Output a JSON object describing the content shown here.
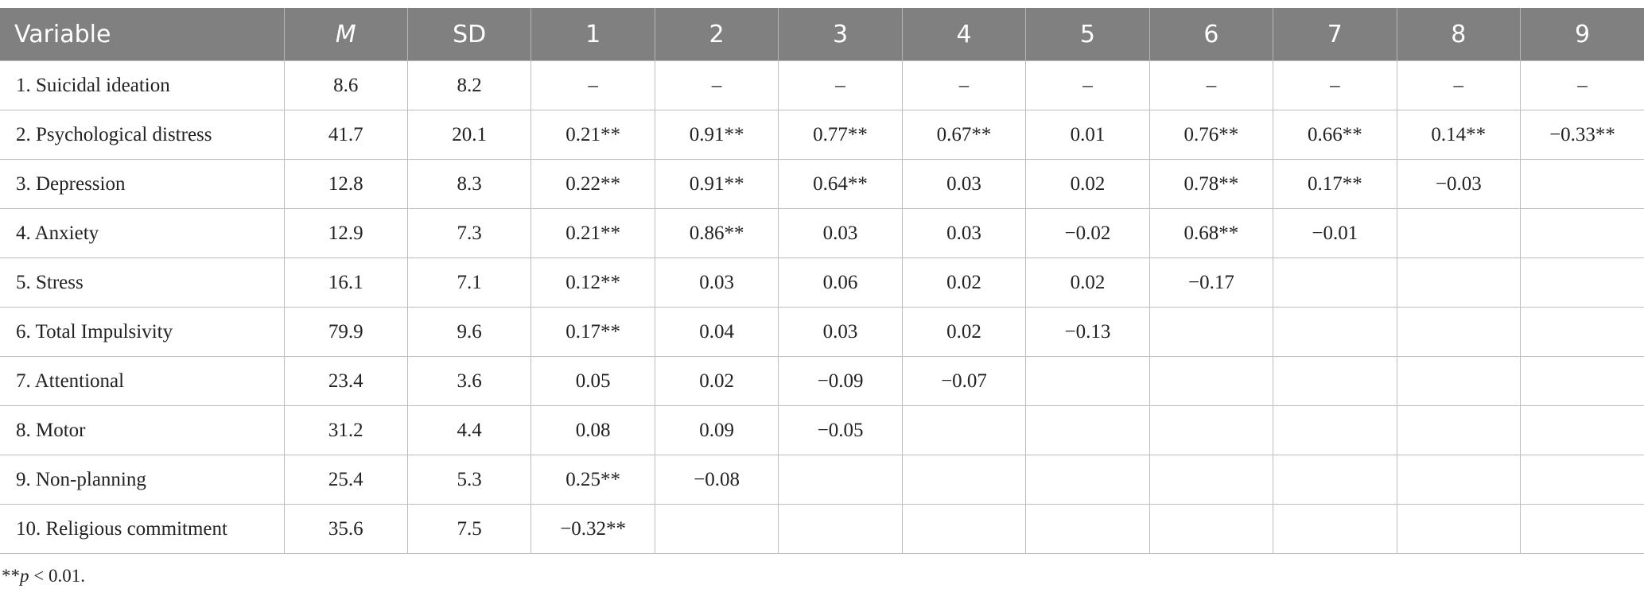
{
  "table": {
    "header": [
      "Variable",
      "M",
      "SD",
      "1",
      "2",
      "3",
      "4",
      "5",
      "6",
      "7",
      "8",
      "9"
    ],
    "rows": [
      [
        "1. Suicidal ideation",
        "8.6",
        "8.2",
        "–",
        "–",
        "–",
        "–",
        "–",
        "–",
        "–",
        "–",
        "–"
      ],
      [
        "2. Psychological distress",
        "41.7",
        "20.1",
        "0.21**",
        "0.91**",
        "0.77**",
        "0.67**",
        "0.01",
        "0.76**",
        "0.66**",
        "0.14**",
        "−0.33**"
      ],
      [
        "3. Depression",
        "12.8",
        "8.3",
        "0.22**",
        "0.91**",
        "0.64**",
        "0.03",
        "0.02",
        "0.78**",
        "0.17**",
        "−0.03"
      ],
      [
        "4. Anxiety",
        "12.9",
        "7.3",
        "0.21**",
        "0.86**",
        "0.03",
        "0.03",
        "−0.02",
        "0.68**",
        "−0.01"
      ],
      [
        "5. Stress",
        "16.1",
        "7.1",
        "0.12**",
        "0.03",
        "0.06",
        "0.02",
        "0.02",
        "−0.17"
      ],
      [
        "6. Total Impulsivity",
        "79.9",
        "9.6",
        "0.17**",
        "0.04",
        "0.03",
        "0.02",
        "−0.13"
      ],
      [
        "7. Attentional",
        "23.4",
        "3.6",
        "0.05",
        "0.02",
        "−0.09",
        "−0.07"
      ],
      [
        "8. Motor",
        "31.2",
        "4.4",
        "0.08",
        "0.09",
        "−0.05"
      ],
      [
        "9. Non-planning",
        "25.4",
        "5.3",
        "0.25**",
        "−0.08"
      ],
      [
        "10. Religious commitment",
        "35.6",
        "7.5",
        "−0.32**"
      ]
    ]
  },
  "footnote": [
    "**",
    "p",
    " < 0.01."
  ]
}
